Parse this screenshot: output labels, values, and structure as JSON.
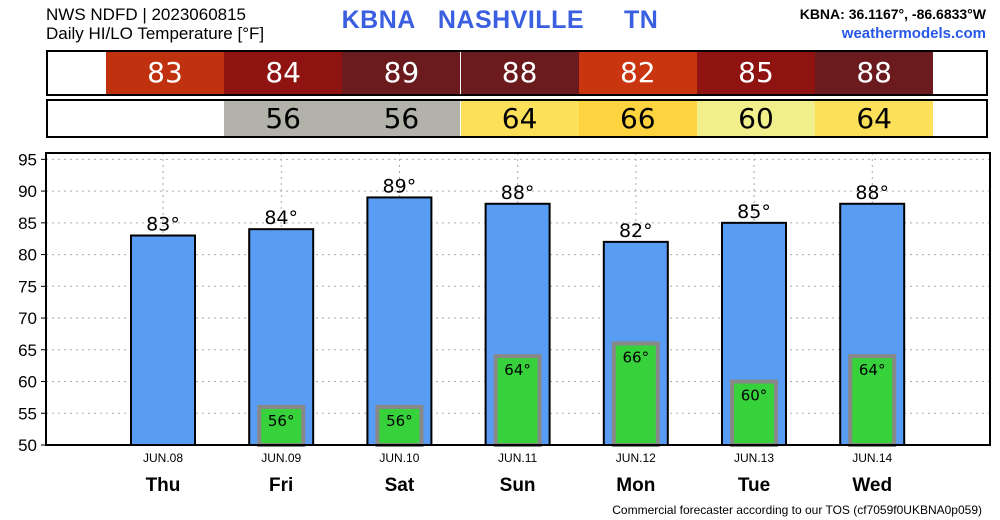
{
  "header": {
    "line1": "NWS NDFD | 2023060815",
    "line2": "Daily HI/LO Temperature [°F]",
    "station": "KBNA",
    "city": "NASHVILLE",
    "state": "TN",
    "coords": "KBNA: 36.1167°, -86.6833°W",
    "site": "weathermodels.com"
  },
  "hi_strip": [
    {
      "label": "83",
      "color": "#c0320f"
    },
    {
      "label": "84",
      "color": "#8f1310"
    },
    {
      "label": "89",
      "color": "#6b1a1d"
    },
    {
      "label": "88",
      "color": "#6b1a1d"
    },
    {
      "label": "82",
      "color": "#c8350f"
    },
    {
      "label": "85",
      "color": "#8f1310"
    },
    {
      "label": "88",
      "color": "#6b1a1d"
    }
  ],
  "lo_strip": [
    {
      "label": "",
      "color": "#ffffff"
    },
    {
      "label": "56",
      "color": "#b2b1aa"
    },
    {
      "label": "56",
      "color": "#b2b1aa"
    },
    {
      "label": "64",
      "color": "#fde05a"
    },
    {
      "label": "66",
      "color": "#fdd440"
    },
    {
      "label": "60",
      "color": "#f1ee8c"
    },
    {
      "label": "64",
      "color": "#fde05a"
    }
  ],
  "chart_data": {
    "type": "bar",
    "categories": [
      "Thu",
      "Fri",
      "Sat",
      "Sun",
      "Mon",
      "Tue",
      "Wed"
    ],
    "dates": [
      "JUN.08",
      "JUN.09",
      "JUN.10",
      "JUN.11",
      "JUN.12",
      "JUN.13",
      "JUN.14"
    ],
    "series": [
      {
        "values": [
          83,
          84,
          89,
          88,
          82,
          85,
          88
        ],
        "labels": [
          "83°",
          "84°",
          "89°",
          "88°",
          "82°",
          "85°",
          "88°"
        ],
        "color": "#589cf4"
      },
      {
        "values": [
          null,
          56,
          56,
          64,
          66,
          60,
          64
        ],
        "labels": [
          "",
          "56°",
          "56°",
          "64°",
          "66°",
          "60°",
          "64°"
        ],
        "color": "#37d13c"
      }
    ],
    "yticks": [
      50,
      55,
      60,
      65,
      70,
      75,
      80,
      85,
      90,
      95
    ],
    "ylim": [
      50,
      96
    ],
    "grid": true
  },
  "footer": "Commercial forecaster according to our TOS (cf7059f0UKBNA0p059)"
}
